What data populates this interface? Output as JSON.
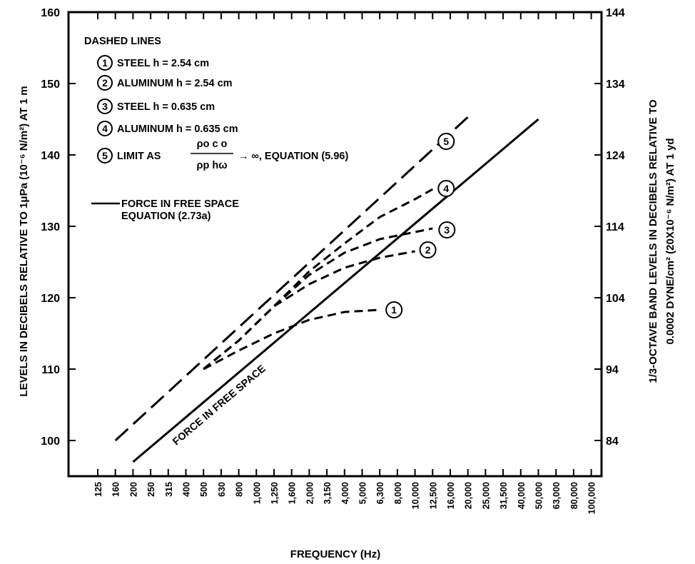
{
  "chart_data": {
    "type": "line",
    "xlabel": "FREQUENCY (Hz)",
    "ylabel": "LEVELS IN DECIBELS RELATIVE TO 1μPa (10⁻⁶ N/m²) AT 1 m",
    "y2label_line1": "1/3-OCTAVE BAND LEVELS IN DECIBELS RELATIVE TO",
    "y2label_line2": "0.0002 DYNE/cm² (20X10⁻⁶ N/m²) AT 1 yd",
    "x_categories": [
      "125",
      "160",
      "200",
      "250",
      "315",
      "400",
      "500",
      "630",
      "800",
      "1,000",
      "1,250",
      "1,600",
      "2,000",
      "3,150",
      "4,000",
      "5,000",
      "6,300",
      "8,000",
      "10,000",
      "12,500",
      "16,000",
      "20,000",
      "25,000",
      "31,500",
      "40,000",
      "50,000",
      "63,000",
      "80,000",
      "100,000"
    ],
    "ylim": [
      95,
      160
    ],
    "y_ticks": [
      "100",
      "110",
      "120",
      "130",
      "140",
      "150",
      "160"
    ],
    "y2_ticks": [
      "84",
      "94",
      "104",
      "114",
      "124",
      "134",
      "144"
    ],
    "series": [
      {
        "name": "FORCE IN FREE SPACE",
        "style": "solid",
        "points": [
          [
            2,
            97
          ],
          [
            25,
            145
          ]
        ]
      },
      {
        "name": "1",
        "style": "dashed",
        "points": [
          [
            6,
            110
          ],
          [
            8,
            112.6
          ],
          [
            10,
            115
          ],
          [
            12,
            116.9
          ],
          [
            14,
            118
          ],
          [
            16,
            118.3
          ]
        ]
      },
      {
        "name": "2",
        "style": "dashed",
        "points": [
          [
            6,
            110
          ],
          [
            8,
            114
          ],
          [
            10,
            118.8
          ],
          [
            12,
            121.9
          ],
          [
            14,
            124.2
          ],
          [
            16,
            125.6
          ],
          [
            18,
            126.5
          ]
        ]
      },
      {
        "name": "3",
        "style": "dashed",
        "points": [
          [
            6,
            110
          ],
          [
            8,
            114
          ],
          [
            10,
            118.8
          ],
          [
            12,
            123.2
          ],
          [
            14,
            126.3
          ],
          [
            16,
            128.2
          ],
          [
            18,
            129.2
          ],
          [
            19,
            129.7
          ]
        ]
      },
      {
        "name": "4",
        "style": "dashed",
        "points": [
          [
            6,
            110
          ],
          [
            8,
            114
          ],
          [
            10,
            118.8
          ],
          [
            12,
            123.7
          ],
          [
            14,
            127.6
          ],
          [
            16,
            131.3
          ],
          [
            18,
            133.8
          ],
          [
            19,
            135.2
          ]
        ]
      },
      {
        "name": "5",
        "style": "longdash",
        "points": [
          [
            1,
            100
          ],
          [
            21,
            145.3
          ]
        ]
      }
    ],
    "legend": {
      "title": "DASHED LINES",
      "items": [
        {
          "num": "1",
          "text": "STEEL h = 2.54 cm"
        },
        {
          "num": "2",
          "text": "ALUMINUM h = 2.54 cm"
        },
        {
          "num": "3",
          "text": "STEEL h = 0.635 cm"
        },
        {
          "num": "4",
          "text": "ALUMINUM h = 0.635 cm"
        },
        {
          "num": "5",
          "text": "LIMIT AS"
        }
      ],
      "limit_numerator": "ρo c o",
      "limit_denominator": "ρp hω",
      "limit_suffix": "→ ∞, EQUATION (5.96)",
      "force_line1": "FORCE IN FREE SPACE",
      "force_line2": "EQUATION (2.73a)"
    },
    "annotations": {
      "force_label": "FORCE IN FREE SPACE",
      "curve_numbers": [
        "1",
        "2",
        "3",
        "4",
        "5"
      ]
    }
  }
}
